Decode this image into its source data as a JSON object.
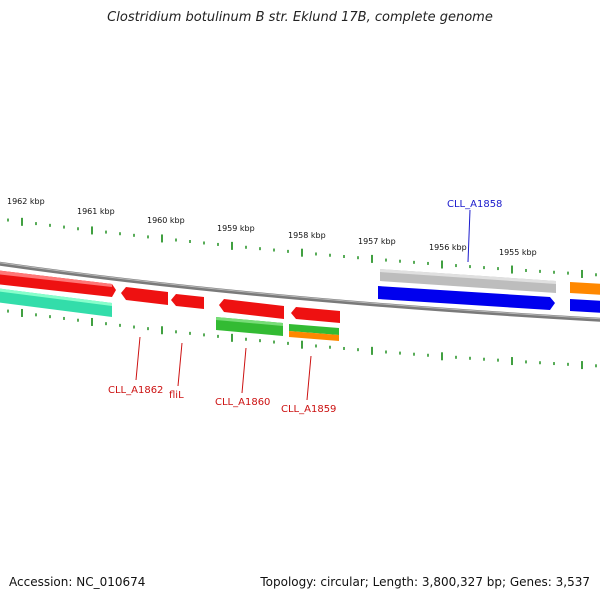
{
  "title": "Clostridium botulinum B str. Eklund 17B, complete genome",
  "accession": "Accession: NC_010674",
  "summary": "Topology: circular; Length: 3,800,327 bp; Genes: 3,537",
  "ticks": [
    {
      "label": "1962 kbp"
    },
    {
      "label": "1961 kbp"
    },
    {
      "label": "1960 kbp"
    },
    {
      "label": "1959 kbp"
    },
    {
      "label": "1958 kbp"
    },
    {
      "label": "1957 kbp"
    },
    {
      "label": "1956 kbp"
    },
    {
      "label": "1955 kbp"
    }
  ],
  "gene_labels": [
    {
      "text": "CLL_A1858",
      "color": "#1a1acc"
    },
    {
      "text": "CLL_A1862",
      "color": "#cc1111"
    },
    {
      "text": "fliL",
      "color": "#cc1111"
    },
    {
      "text": "CLL_A1860",
      "color": "#cc1111"
    },
    {
      "text": "CLL_A1859",
      "color": "#cc1111"
    }
  ],
  "colors": {
    "red": "#ee1111",
    "green": "#33bb33",
    "teal": "#33ddaa",
    "blue": "#0000ee",
    "orange": "#ff8800",
    "grey": "#bbbbbb",
    "backbone": "#888888",
    "tick": "#118811"
  }
}
